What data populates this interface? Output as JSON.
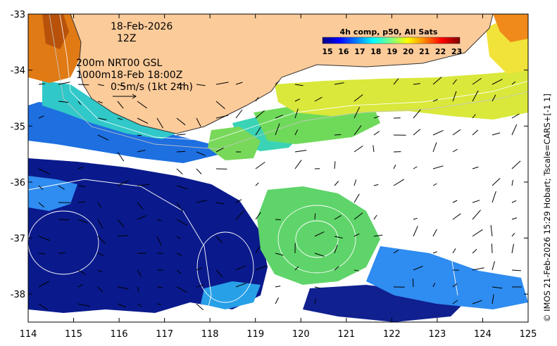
{
  "map": {
    "lon_range": [
      114,
      125
    ],
    "lat_range": [
      -38.5,
      -33
    ],
    "x_ticks": [
      "114",
      "115",
      "116",
      "117",
      "118",
      "119",
      "120",
      "121",
      "122",
      "123",
      "124",
      "125"
    ],
    "y_ticks": [
      "-33",
      "-34",
      "-35",
      "-36",
      "-37",
      "-38"
    ],
    "land_color": "#fccb9a",
    "cloud_color": "#ffffff"
  },
  "annotations": {
    "date": "18-Feb-2026",
    "time": "12Z",
    "isobath_line1": "200m  NRT00 GSL",
    "isobath_line2": "1000m18-Feb 18:00Z",
    "velocity_scale": "0.5m/s (1kt 24h)"
  },
  "colorbar": {
    "title": "4h comp, p50, All Sats",
    "ticks": [
      "15",
      "16",
      "17",
      "18",
      "19",
      "20",
      "21",
      "22",
      "23"
    ],
    "range": [
      15,
      23.5
    ],
    "colors": [
      "#00007f",
      "#0000ff",
      "#007fff",
      "#00ffff",
      "#7fff7f",
      "#ffff00",
      "#ff7f00",
      "#ff0000",
      "#7f0000"
    ]
  },
  "credit": "© IMOS 21-Feb-2026 15:29 Hobart; Tscale=CARS+[-1 1]"
}
